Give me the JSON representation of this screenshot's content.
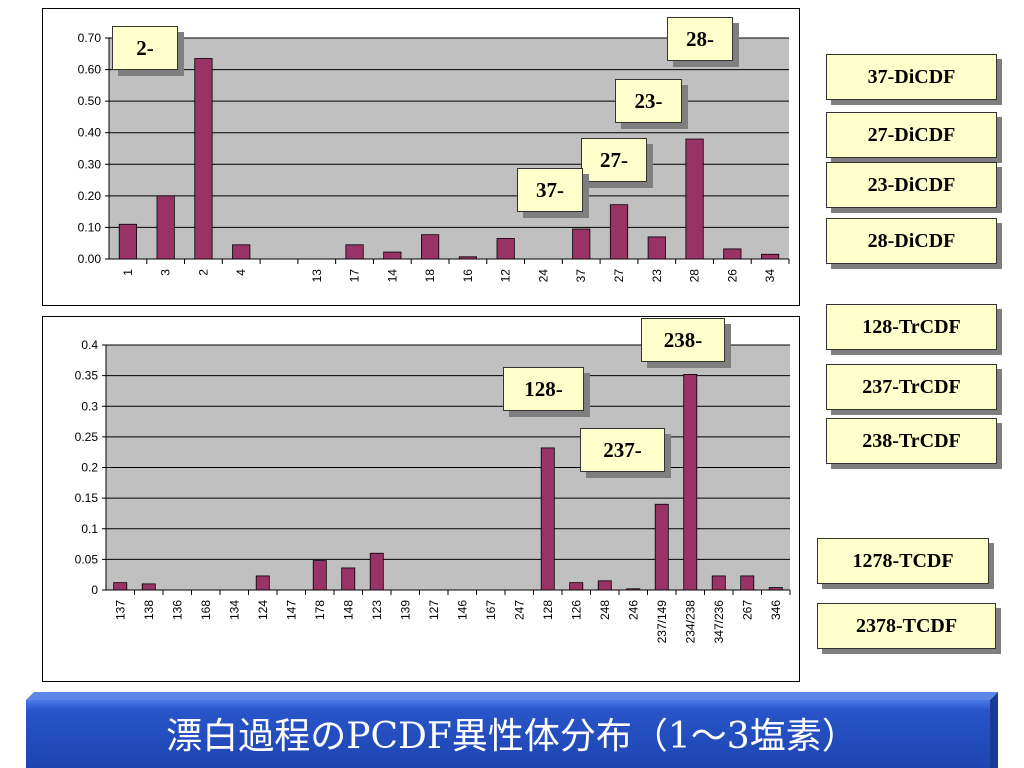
{
  "colors": {
    "bar": "#993366",
    "plot_bg": "#c0c0c0",
    "title_bg": "#2855c9",
    "label_bg": "#ffffcc"
  },
  "chart_data": [
    {
      "type": "bar",
      "categories": [
        "1",
        "3",
        "2",
        "4",
        "",
        "13",
        "17",
        "14",
        "18",
        "16",
        "12",
        "24",
        "37",
        "27",
        "23",
        "28",
        "26",
        "34"
      ],
      "values": [
        0.11,
        0.2,
        0.635,
        0.045,
        0,
        0,
        0.045,
        0.022,
        0.077,
        0.007,
        0.065,
        0,
        0.095,
        0.172,
        0.07,
        0.38,
        0.032,
        0.015
      ],
      "yticks": [
        "0.70",
        "0.60",
        "0.50",
        "0.40",
        "0.30",
        "0.20",
        "0.10",
        "0.00"
      ],
      "ylim": [
        0,
        0.7
      ],
      "grid": true,
      "annotations": [
        {
          "text": "2-",
          "category": "2"
        },
        {
          "text": "37-",
          "category": "37"
        },
        {
          "text": "27-",
          "category": "27"
        },
        {
          "text": "23-",
          "category": "23"
        },
        {
          "text": "28-",
          "category": "28"
        }
      ]
    },
    {
      "type": "bar",
      "categories": [
        "137",
        "138",
        "136",
        "168",
        "134",
        "124",
        "147",
        "178",
        "148",
        "123",
        "139",
        "127",
        "146",
        "167",
        "247",
        "128",
        "126",
        "248",
        "246",
        "237/149",
        "234/238",
        "347/236",
        "267",
        "346"
      ],
      "values": [
        0.012,
        0.01,
        0,
        0,
        0,
        0.023,
        0,
        0.048,
        0.036,
        0.06,
        0,
        0,
        0,
        0,
        0,
        0.232,
        0.012,
        0.015,
        0.002,
        0.14,
        0.352,
        0.023,
        0.023,
        0.004
      ],
      "yticks": [
        "0.4",
        "0.35",
        "0.3",
        "0.25",
        "0.2",
        "0.15",
        "0.1",
        "0.05",
        "0"
      ],
      "ylim": [
        0,
        0.4
      ],
      "grid": true,
      "annotations": [
        {
          "text": "128-",
          "category": "128"
        },
        {
          "text": "237-",
          "category": "237/149"
        },
        {
          "text": "238-",
          "category": "234/238"
        }
      ]
    }
  ],
  "legend": {
    "di": [
      "37-DiCDF",
      "27-DiCDF",
      "23-DiCDF",
      "28-DiCDF"
    ],
    "tr": [
      "128-TrCDF",
      "237-TrCDF",
      "238-TrCDF"
    ],
    "t": [
      "1278-TCDF",
      "2378-TCDF"
    ]
  },
  "title": "漂白過程のPCDF異性体分布（1～3塩素）"
}
